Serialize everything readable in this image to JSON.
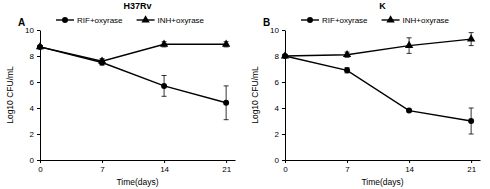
{
  "chart_data": [
    {
      "type": "line",
      "title": "H37Rv",
      "annotations": [
        "A"
      ],
      "x_label": "Time(days)",
      "y_label": "Log10 CFU/mL",
      "x": [
        0,
        7,
        14,
        21
      ],
      "xlim": [
        0,
        22
      ],
      "xticks": [
        0,
        7,
        14,
        21
      ],
      "ylim": [
        0,
        10
      ],
      "yticks": [
        0,
        2,
        4,
        6,
        8,
        10
      ],
      "grid": false,
      "legend": "top",
      "series": [
        {
          "name": "RIF+oxyrase",
          "color": "#000000",
          "marker": "circle",
          "values": [
            8.7,
            7.5,
            5.7,
            4.4
          ],
          "errors": [
            0.1,
            0.2,
            0.8,
            1.3
          ]
        },
        {
          "name": "INH+oxyrase",
          "color": "#000000",
          "marker": "triangle",
          "values": [
            8.7,
            7.6,
            8.9,
            8.9
          ],
          "errors": [
            0.1,
            0.2,
            0.2,
            0.2
          ]
        }
      ]
    },
    {
      "type": "line",
      "title": "K",
      "annotations": [
        "B"
      ],
      "x_label": "Time(days)",
      "y_label": "Log10 CFU/mL",
      "x": [
        0,
        7,
        14,
        21
      ],
      "xlim": [
        0,
        22
      ],
      "xticks": [
        0,
        7,
        14,
        21
      ],
      "ylim": [
        0,
        10
      ],
      "yticks": [
        0,
        2,
        4,
        6,
        8,
        10
      ],
      "grid": false,
      "legend": "top",
      "series": [
        {
          "name": "RIF+oxyrase",
          "color": "#000000",
          "marker": "circle",
          "values": [
            8.0,
            6.9,
            3.8,
            3.0
          ],
          "errors": [
            0.1,
            0.2,
            0.1,
            1.0
          ]
        },
        {
          "name": "INH+oxyrase",
          "color": "#000000",
          "marker": "triangle",
          "values": [
            8.0,
            8.1,
            8.8,
            9.3
          ],
          "errors": [
            0.1,
            0.2,
            0.6,
            0.5
          ]
        }
      ]
    }
  ]
}
